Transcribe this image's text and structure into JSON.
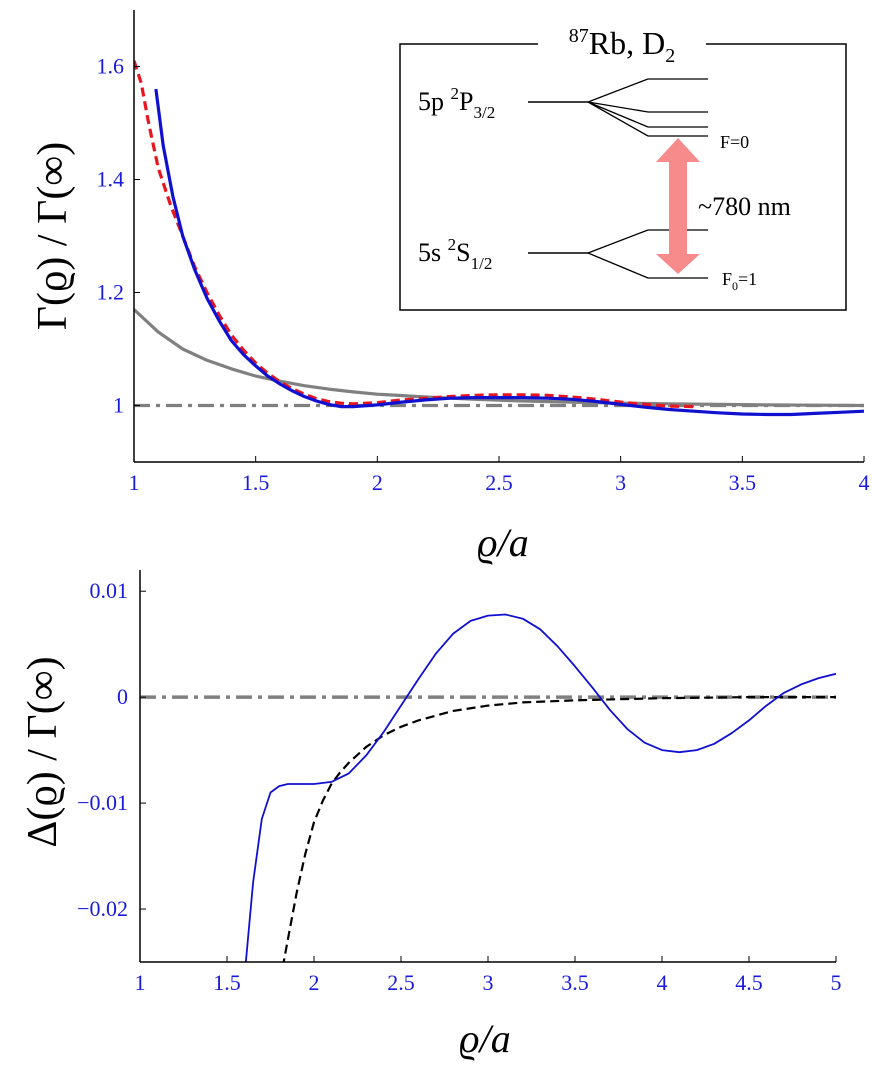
{
  "chart_data": [
    {
      "type": "line",
      "ylabel": "Γ(ϱ) / Γ(∞)",
      "xlabel": "ϱ/a",
      "xlim": [
        1,
        4
      ],
      "ylim": [
        0.9,
        1.7
      ],
      "x_ticks": [
        "1",
        "1.5",
        "2",
        "2.5",
        "3",
        "3.5",
        "4"
      ],
      "y_ticks": [
        "1",
        "1.2",
        "1.4",
        "1.6"
      ],
      "series": [
        {
          "name": "blue-solid",
          "color": "#1010d0",
          "style": "solid",
          "x": [
            1.09,
            1.12,
            1.16,
            1.2,
            1.25,
            1.3,
            1.35,
            1.4,
            1.45,
            1.5,
            1.55,
            1.6,
            1.65,
            1.7,
            1.75,
            1.8,
            1.85,
            1.9,
            2.0,
            2.1,
            2.2,
            2.3,
            2.4,
            2.5,
            2.6,
            2.7,
            2.8,
            2.9,
            3.0,
            3.1,
            3.2,
            3.3,
            3.4,
            3.5,
            3.6,
            3.7,
            3.8,
            3.9,
            4.0
          ],
          "y": [
            1.56,
            1.46,
            1.37,
            1.3,
            1.24,
            1.19,
            1.15,
            1.115,
            1.09,
            1.07,
            1.052,
            1.038,
            1.026,
            1.016,
            1.008,
            1.002,
            0.998,
            0.998,
            1.001,
            1.006,
            1.01,
            1.013,
            1.014,
            1.014,
            1.014,
            1.013,
            1.011,
            1.007,
            1.002,
            0.997,
            0.993,
            0.99,
            0.987,
            0.985,
            0.984,
            0.984,
            0.986,
            0.988,
            0.99
          ]
        },
        {
          "name": "red-dashed",
          "color": "#e8141e",
          "style": "dashed",
          "x": [
            1.0,
            1.03,
            1.06,
            1.1,
            1.15,
            1.2,
            1.25,
            1.3,
            1.35,
            1.4,
            1.45,
            1.5,
            1.55,
            1.6,
            1.65,
            1.7,
            1.75,
            1.8,
            1.85,
            1.9,
            2.0,
            2.1,
            2.2,
            2.3,
            2.4,
            2.5,
            2.6,
            2.7,
            2.8,
            2.9,
            3.0,
            3.1,
            3.2,
            3.3
          ],
          "y": [
            1.61,
            1.57,
            1.5,
            1.42,
            1.355,
            1.3,
            1.245,
            1.2,
            1.16,
            1.125,
            1.098,
            1.075,
            1.057,
            1.042,
            1.03,
            1.02,
            1.012,
            1.007,
            1.004,
            1.003,
            1.005,
            1.01,
            1.013,
            1.016,
            1.018,
            1.019,
            1.019,
            1.018,
            1.015,
            1.011,
            1.006,
            1.002,
            0.999,
            0.998
          ]
        },
        {
          "name": "gray-solid",
          "color": "#808080",
          "style": "solid",
          "x": [
            1.0,
            1.1,
            1.2,
            1.3,
            1.4,
            1.5,
            1.6,
            1.7,
            1.8,
            1.9,
            2.0,
            2.2,
            2.4,
            2.6,
            2.8,
            3.0,
            3.2,
            3.4,
            3.6,
            3.8,
            4.0
          ],
          "y": [
            1.17,
            1.13,
            1.1,
            1.08,
            1.065,
            1.052,
            1.043,
            1.035,
            1.029,
            1.024,
            1.02,
            1.015,
            1.011,
            1.008,
            1.006,
            1.004,
            1.003,
            1.002,
            1.001,
            1.0005,
            1.0
          ]
        },
        {
          "name": "gray-dashdot",
          "color": "#808080",
          "style": "dashdot",
          "x": [
            1.0,
            4.0
          ],
          "y": [
            1.0,
            1.0
          ]
        }
      ],
      "inset": {
        "title_sup": "87",
        "title": "Rb, D",
        "title_sub": "2",
        "upper_level": "5p ",
        "upper_sup": "2",
        "upper_term": "P",
        "upper_sub": "3/2",
        "lower_level": "5s ",
        "lower_sup": "2",
        "lower_term": "S",
        "lower_sub": "1/2",
        "upper_F": "F=0",
        "lower_F_prefix": "F",
        "lower_F_sub": "0",
        "lower_F_suffix": "=1",
        "wavelength": "~780 nm",
        "arrow_color": "#f78a8a"
      }
    },
    {
      "type": "line",
      "ylabel": "Δ(ϱ) / Γ(∞)",
      "xlabel": "ϱ/a",
      "xlim": [
        1,
        5
      ],
      "ylim": [
        -0.025,
        0.012
      ],
      "x_ticks": [
        "1",
        "1.5",
        "2",
        "2.5",
        "3",
        "3.5",
        "4",
        "4.5",
        "5"
      ],
      "y_ticks": [
        "0.01",
        "0",
        "−0.01",
        "−0.02"
      ],
      "series": [
        {
          "name": "blue-solid",
          "color": "#1010d0",
          "style": "solid",
          "x": [
            1.6,
            1.65,
            1.7,
            1.75,
            1.8,
            1.85,
            1.9,
            2.0,
            2.1,
            2.2,
            2.3,
            2.4,
            2.5,
            2.6,
            2.7,
            2.8,
            2.9,
            3.0,
            3.1,
            3.2,
            3.3,
            3.4,
            3.5,
            3.6,
            3.7,
            3.8,
            3.9,
            4.0,
            4.1,
            4.2,
            4.3,
            4.4,
            4.5,
            4.6,
            4.7,
            4.8,
            4.9,
            5.0
          ],
          "y": [
            -0.0265,
            -0.0175,
            -0.0115,
            -0.009,
            -0.0084,
            -0.0082,
            -0.0082,
            -0.0082,
            -0.008,
            -0.0072,
            -0.0055,
            -0.0033,
            -0.0008,
            0.0017,
            0.0041,
            0.006,
            0.0072,
            0.0077,
            0.0078,
            0.0074,
            0.0064,
            0.0048,
            0.0029,
            0.0009,
            -0.0012,
            -0.003,
            -0.0043,
            -0.005,
            -0.0052,
            -0.005,
            -0.0044,
            -0.0034,
            -0.0022,
            -0.0008,
            0.0004,
            0.0012,
            0.0018,
            0.0022
          ]
        },
        {
          "name": "black-dashed",
          "color": "#000000",
          "style": "dashed",
          "x": [
            1.82,
            1.86,
            1.9,
            1.95,
            2.0,
            2.05,
            2.1,
            2.15,
            2.2,
            2.3,
            2.4,
            2.5,
            2.6,
            2.8,
            3.0,
            3.2,
            3.5,
            4.0,
            4.5,
            5.0
          ],
          "y": [
            -0.0255,
            -0.022,
            -0.0185,
            -0.0148,
            -0.0118,
            -0.0098,
            -0.0082,
            -0.0071,
            -0.0062,
            -0.0047,
            -0.0036,
            -0.0028,
            -0.0022,
            -0.0013,
            -0.0008,
            -0.0005,
            -0.0003,
            -0.0001,
            0.0,
            0.0
          ]
        },
        {
          "name": "gray-dashdot",
          "color": "#808080",
          "style": "dashdot",
          "x": [
            1.0,
            5.0
          ],
          "y": [
            0.0,
            0.0
          ]
        }
      ]
    }
  ]
}
